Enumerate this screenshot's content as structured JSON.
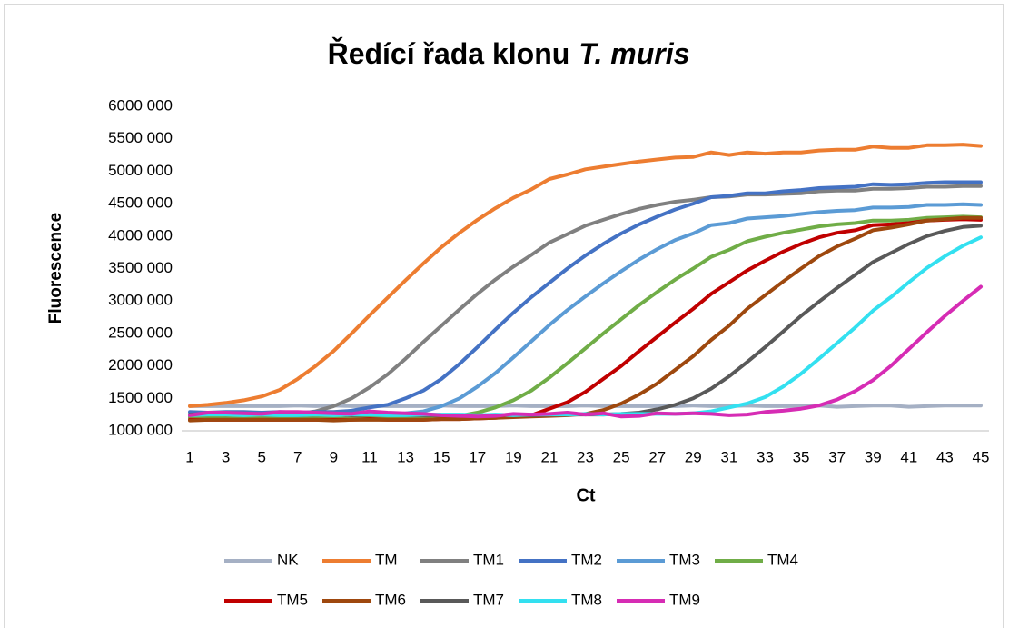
{
  "chart_data": {
    "type": "line",
    "title": "Ředící řada klonu",
    "title_italic": "T. muris",
    "x_label": "Ct",
    "y_label": "Fluorescence",
    "x": [
      1,
      2,
      3,
      4,
      5,
      6,
      7,
      8,
      9,
      10,
      11,
      12,
      13,
      14,
      15,
      16,
      17,
      18,
      19,
      20,
      21,
      22,
      23,
      24,
      25,
      26,
      27,
      28,
      29,
      30,
      31,
      32,
      33,
      34,
      35,
      36,
      37,
      38,
      39,
      40,
      41,
      42,
      43,
      44,
      45
    ],
    "xlim": [
      1,
      45
    ],
    "xticks": [
      1,
      3,
      5,
      7,
      9,
      11,
      13,
      15,
      17,
      19,
      21,
      23,
      25,
      27,
      29,
      31,
      33,
      35,
      37,
      39,
      41,
      43,
      45
    ],
    "ylim": [
      1000000,
      6000000
    ],
    "yticks": [
      {
        "value": 1000000,
        "label": "1000 000"
      },
      {
        "value": 1500000,
        "label": "1500 000"
      },
      {
        "value": 2000000,
        "label": "2000 000"
      },
      {
        "value": 2500000,
        "label": "2500 000"
      },
      {
        "value": 3000000,
        "label": "3000 000"
      },
      {
        "value": 3500000,
        "label": "3500 000"
      },
      {
        "value": 4000000,
        "label": "4000 000"
      },
      {
        "value": 4500000,
        "label": "4500 000"
      },
      {
        "value": 5000000,
        "label": "5000 000"
      },
      {
        "value": 5500000,
        "label": "5500 000"
      },
      {
        "value": 6000000,
        "label": "6000 000"
      }
    ],
    "legend": "bottom",
    "series": [
      {
        "name": "NK",
        "color": "#a5b0c4",
        "values": [
          1380000,
          1380000,
          1380000,
          1380000,
          1380000,
          1380000,
          1390000,
          1380000,
          1390000,
          1380000,
          1380000,
          1380000,
          1380000,
          1380000,
          1390000,
          1380000,
          1380000,
          1380000,
          1390000,
          1380000,
          1380000,
          1380000,
          1390000,
          1380000,
          1380000,
          1380000,
          1380000,
          1380000,
          1390000,
          1380000,
          1380000,
          1390000,
          1380000,
          1380000,
          1380000,
          1390000,
          1370000,
          1380000,
          1390000,
          1390000,
          1370000,
          1380000,
          1390000,
          1390000,
          1390000
        ]
      },
      {
        "name": "TM",
        "color": "#ed7d31",
        "values": [
          1380000,
          1400000,
          1430000,
          1470000,
          1530000,
          1630000,
          1800000,
          2000000,
          2230000,
          2500000,
          2780000,
          3050000,
          3320000,
          3580000,
          3830000,
          4050000,
          4250000,
          4430000,
          4590000,
          4720000,
          4880000,
          4950000,
          5030000,
          5070000,
          5110000,
          5150000,
          5180000,
          5210000,
          5220000,
          5290000,
          5250000,
          5290000,
          5270000,
          5290000,
          5290000,
          5320000,
          5330000,
          5330000,
          5380000,
          5360000,
          5360000,
          5400000,
          5400000,
          5410000,
          5390000
        ]
      },
      {
        "name": "TM1",
        "color": "#808080",
        "values": [
          1230000,
          1220000,
          1230000,
          1230000,
          1240000,
          1240000,
          1260000,
          1300000,
          1380000,
          1500000,
          1670000,
          1870000,
          2110000,
          2370000,
          2620000,
          2870000,
          3110000,
          3330000,
          3530000,
          3710000,
          3900000,
          4030000,
          4160000,
          4250000,
          4340000,
          4420000,
          4480000,
          4530000,
          4560000,
          4600000,
          4610000,
          4640000,
          4640000,
          4650000,
          4660000,
          4690000,
          4700000,
          4700000,
          4730000,
          4730000,
          4740000,
          4760000,
          4760000,
          4770000,
          4770000
        ]
      },
      {
        "name": "TM2",
        "color": "#4472c4",
        "values": [
          1290000,
          1280000,
          1290000,
          1290000,
          1280000,
          1290000,
          1280000,
          1290000,
          1290000,
          1310000,
          1360000,
          1400000,
          1500000,
          1620000,
          1800000,
          2030000,
          2290000,
          2560000,
          2820000,
          3060000,
          3280000,
          3500000,
          3700000,
          3880000,
          4040000,
          4180000,
          4300000,
          4410000,
          4500000,
          4600000,
          4620000,
          4660000,
          4660000,
          4690000,
          4710000,
          4740000,
          4750000,
          4760000,
          4800000,
          4790000,
          4800000,
          4820000,
          4830000,
          4830000,
          4830000
        ]
      },
      {
        "name": "TM3",
        "color": "#5b9bd5",
        "values": [
          1220000,
          1230000,
          1220000,
          1230000,
          1220000,
          1230000,
          1230000,
          1220000,
          1230000,
          1230000,
          1240000,
          1250000,
          1270000,
          1300000,
          1380000,
          1500000,
          1680000,
          1890000,
          2130000,
          2380000,
          2630000,
          2860000,
          3070000,
          3270000,
          3460000,
          3640000,
          3800000,
          3940000,
          4040000,
          4170000,
          4200000,
          4270000,
          4290000,
          4310000,
          4340000,
          4370000,
          4390000,
          4400000,
          4440000,
          4440000,
          4450000,
          4480000,
          4480000,
          4490000,
          4480000
        ]
      },
      {
        "name": "TM4",
        "color": "#70ad47",
        "values": [
          1200000,
          1210000,
          1200000,
          1210000,
          1200000,
          1210000,
          1210000,
          1200000,
          1210000,
          1210000,
          1200000,
          1210000,
          1210000,
          1210000,
          1220000,
          1230000,
          1280000,
          1360000,
          1470000,
          1620000,
          1820000,
          2040000,
          2270000,
          2500000,
          2720000,
          2940000,
          3140000,
          3330000,
          3500000,
          3680000,
          3790000,
          3920000,
          3990000,
          4050000,
          4100000,
          4150000,
          4180000,
          4200000,
          4240000,
          4240000,
          4250000,
          4280000,
          4290000,
          4300000,
          4290000
        ]
      },
      {
        "name": "TM5",
        "color": "#c00000",
        "values": [
          1170000,
          1170000,
          1170000,
          1170000,
          1170000,
          1170000,
          1170000,
          1170000,
          1170000,
          1170000,
          1180000,
          1170000,
          1170000,
          1170000,
          1180000,
          1180000,
          1190000,
          1200000,
          1220000,
          1240000,
          1340000,
          1440000,
          1600000,
          1800000,
          2000000,
          2230000,
          2450000,
          2670000,
          2880000,
          3110000,
          3290000,
          3470000,
          3620000,
          3760000,
          3880000,
          3980000,
          4050000,
          4090000,
          4170000,
          4180000,
          4200000,
          4240000,
          4250000,
          4260000,
          4250000
        ]
      },
      {
        "name": "TM6",
        "color": "#9e480e",
        "values": [
          1160000,
          1170000,
          1170000,
          1170000,
          1170000,
          1170000,
          1170000,
          1170000,
          1160000,
          1170000,
          1170000,
          1170000,
          1170000,
          1170000,
          1180000,
          1180000,
          1190000,
          1200000,
          1210000,
          1220000,
          1230000,
          1240000,
          1260000,
          1320000,
          1420000,
          1560000,
          1730000,
          1940000,
          2150000,
          2400000,
          2620000,
          2880000,
          3090000,
          3300000,
          3500000,
          3690000,
          3840000,
          3960000,
          4090000,
          4130000,
          4180000,
          4240000,
          4260000,
          4280000,
          4280000
        ]
      },
      {
        "name": "TM7",
        "color": "#595959",
        "values": [
          1250000,
          1260000,
          1250000,
          1260000,
          1250000,
          1250000,
          1240000,
          1250000,
          1250000,
          1240000,
          1250000,
          1250000,
          1240000,
          1240000,
          1240000,
          1240000,
          1240000,
          1240000,
          1250000,
          1240000,
          1250000,
          1250000,
          1250000,
          1250000,
          1260000,
          1280000,
          1330000,
          1400000,
          1500000,
          1650000,
          1840000,
          2060000,
          2290000,
          2530000,
          2770000,
          2990000,
          3200000,
          3400000,
          3600000,
          3740000,
          3880000,
          4000000,
          4080000,
          4140000,
          4160000
        ]
      },
      {
        "name": "TM8",
        "color": "#33e0f0",
        "values": [
          1240000,
          1250000,
          1250000,
          1240000,
          1250000,
          1240000,
          1240000,
          1250000,
          1240000,
          1250000,
          1250000,
          1240000,
          1240000,
          1250000,
          1250000,
          1250000,
          1240000,
          1250000,
          1240000,
          1250000,
          1250000,
          1250000,
          1260000,
          1250000,
          1260000,
          1260000,
          1260000,
          1260000,
          1270000,
          1300000,
          1360000,
          1420000,
          1520000,
          1680000,
          1880000,
          2110000,
          2350000,
          2590000,
          2850000,
          3060000,
          3290000,
          3510000,
          3690000,
          3850000,
          3980000
        ]
      },
      {
        "name": "TM9",
        "color": "#d62cb4",
        "values": [
          1240000,
          1280000,
          1280000,
          1270000,
          1260000,
          1290000,
          1290000,
          1280000,
          1270000,
          1260000,
          1300000,
          1280000,
          1270000,
          1260000,
          1240000,
          1230000,
          1220000,
          1230000,
          1260000,
          1250000,
          1260000,
          1280000,
          1250000,
          1270000,
          1220000,
          1230000,
          1270000,
          1260000,
          1270000,
          1260000,
          1240000,
          1250000,
          1290000,
          1310000,
          1340000,
          1390000,
          1480000,
          1610000,
          1780000,
          2000000,
          2260000,
          2520000,
          2770000,
          3000000,
          3220000
        ]
      }
    ]
  }
}
